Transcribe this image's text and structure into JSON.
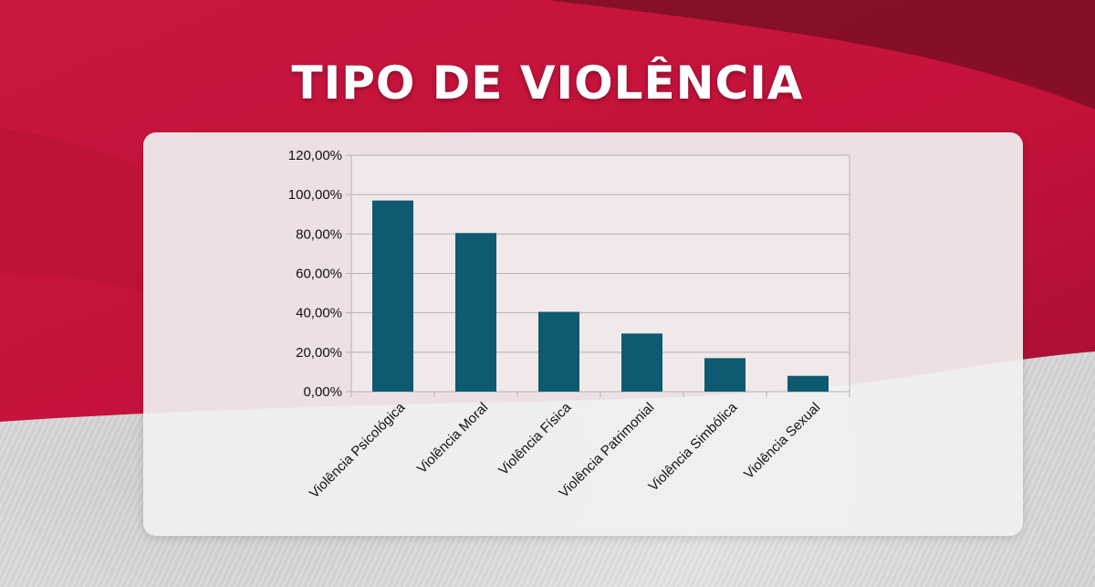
{
  "page": {
    "title": "TIPO DE VIOLÊNCIA",
    "colors": {
      "background_red": "#c8163f",
      "dark_red": "#7a0f22",
      "bar": "#0e5a70",
      "card": "#f0f0f0"
    }
  },
  "chart_data": {
    "type": "bar",
    "categories": [
      "Violência Psicológica",
      "Violência Moral",
      "Violência Física",
      "Violência Patrimonial",
      "Violência Simbólica",
      "Violência Sexual"
    ],
    "values": [
      97,
      80.5,
      40.5,
      29.5,
      17,
      8
    ],
    "y_tick_labels": [
      "0,00%",
      "20,00%",
      "40,00%",
      "60,00%",
      "80,00%",
      "100,00%",
      "120,00%"
    ],
    "ylim": [
      0,
      120
    ],
    "grid": true,
    "legend": "none"
  }
}
